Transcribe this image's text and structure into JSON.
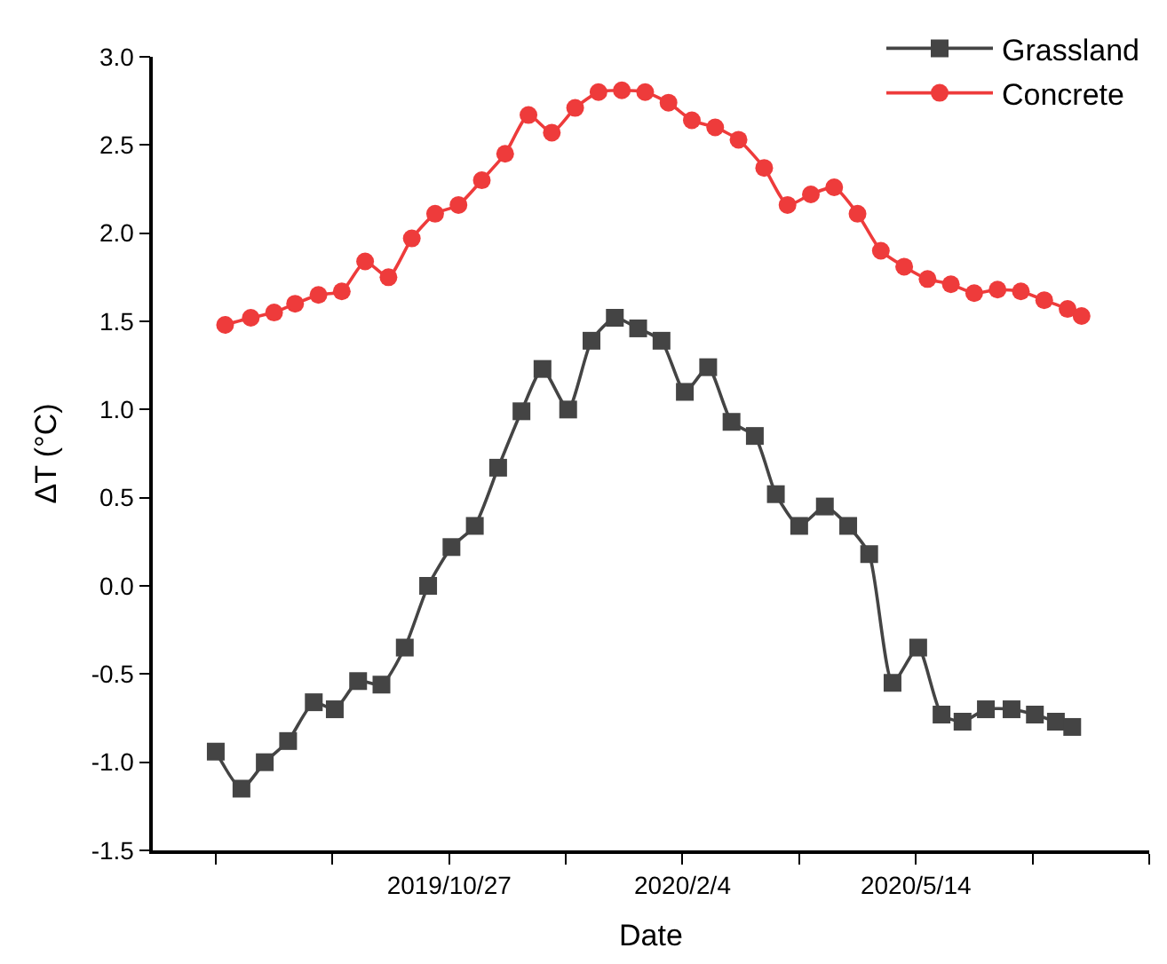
{
  "chart_data": {
    "type": "line",
    "xlabel": "Date",
    "ylabel": "ΔT (°C)",
    "xlim": [
      "2019-06-22",
      "2020-08-22"
    ],
    "xticks": [
      {
        "value": "2019-07-19",
        "label": null
      },
      {
        "value": "2019-09-07",
        "label": null
      },
      {
        "value": "2019-10-27",
        "label": "2019/10/27"
      },
      {
        "value": "2019-12-16",
        "label": null
      },
      {
        "value": "2020-02-04",
        "label": "2020/2/4"
      },
      {
        "value": "2020-03-25",
        "label": null
      },
      {
        "value": "2020-05-14",
        "label": "2020/5/14"
      },
      {
        "value": "2020-07-03",
        "label": null
      },
      {
        "value": "2020-08-22",
        "label": null
      }
    ],
    "ylim": [
      -1.5,
      3.0
    ],
    "yticks": [
      {
        "value": -1.5,
        "label": "-1.5"
      },
      {
        "value": -1.0,
        "label": "-1.0"
      },
      {
        "value": -0.5,
        "label": "-0.5"
      },
      {
        "value": 0,
        "label": "0.0"
      },
      {
        "value": 0.5,
        "label": "0.5"
      },
      {
        "value": 1.0,
        "label": "1.0"
      },
      {
        "value": 1.5,
        "label": "1.5"
      },
      {
        "value": 2.0,
        "label": "2.0"
      },
      {
        "value": 2.5,
        "label": "2.5"
      },
      {
        "value": 3.0,
        "label": "3.0"
      }
    ],
    "legend": "top right",
    "line_style": "solid",
    "series": [
      {
        "name": "Grassland",
        "color": "#444444",
        "marker": "square",
        "x": [
          "2019-07-19",
          "2019-07-30",
          "2019-08-09",
          "2019-08-19",
          "2019-08-30",
          "2019-09-08",
          "2019-09-18",
          "2019-09-28",
          "2019-10-08",
          "2019-10-18",
          "2019-10-28",
          "2019-11-07",
          "2019-11-17",
          "2019-11-27",
          "2019-12-06",
          "2019-12-17",
          "2019-12-27",
          "2020-01-06",
          "2020-01-16",
          "2020-01-26",
          "2020-02-05",
          "2020-02-15",
          "2020-02-25",
          "2020-03-06",
          "2020-03-15",
          "2020-03-25",
          "2020-04-05",
          "2020-04-15",
          "2020-04-24",
          "2020-05-04",
          "2020-05-15",
          "2020-05-25",
          "2020-06-03",
          "2020-06-13",
          "2020-06-24",
          "2020-07-04",
          "2020-07-13",
          "2020-07-20"
        ],
        "values": [
          -0.94,
          -1.15,
          -1.0,
          -0.88,
          -0.66,
          -0.7,
          -0.54,
          -0.56,
          -0.35,
          0.0,
          0.22,
          0.34,
          0.67,
          0.99,
          1.23,
          1.0,
          1.39,
          1.52,
          1.46,
          1.39,
          1.1,
          1.24,
          0.93,
          0.85,
          0.52,
          0.34,
          0.45,
          0.34,
          0.18,
          -0.55,
          -0.35,
          -0.73,
          -0.77,
          -0.7,
          -0.7,
          -0.73,
          -0.77,
          -0.8
        ]
      },
      {
        "name": "Concrete",
        "color": "#ee3b3b",
        "marker": "circle",
        "x": [
          "2019-07-23",
          "2019-08-03",
          "2019-08-13",
          "2019-08-22",
          "2019-09-01",
          "2019-09-11",
          "2019-09-21",
          "2019-10-01",
          "2019-10-11",
          "2019-10-21",
          "2019-10-31",
          "2019-11-10",
          "2019-11-20",
          "2019-11-30",
          "2019-12-10",
          "2019-12-20",
          "2019-12-30",
          "2020-01-09",
          "2020-01-19",
          "2020-01-29",
          "2020-02-08",
          "2020-02-18",
          "2020-02-28",
          "2020-03-10",
          "2020-03-20",
          "2020-03-30",
          "2020-04-09",
          "2020-04-19",
          "2020-04-29",
          "2020-05-09",
          "2020-05-19",
          "2020-05-29",
          "2020-06-08",
          "2020-06-18",
          "2020-06-28",
          "2020-07-08",
          "2020-07-18",
          "2020-07-24"
        ],
        "values": [
          1.48,
          1.52,
          1.55,
          1.6,
          1.65,
          1.67,
          1.84,
          1.75,
          1.97,
          2.11,
          2.16,
          2.3,
          2.45,
          2.67,
          2.57,
          2.71,
          2.8,
          2.81,
          2.8,
          2.74,
          2.64,
          2.6,
          2.53,
          2.37,
          2.16,
          2.22,
          2.26,
          2.11,
          1.9,
          1.81,
          1.74,
          1.71,
          1.66,
          1.68,
          1.67,
          1.62,
          1.57,
          1.53
        ]
      }
    ]
  }
}
